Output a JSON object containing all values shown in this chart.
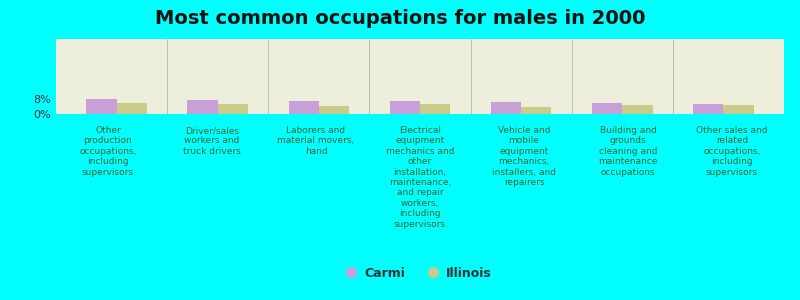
{
  "title": "Most common occupations for males in 2000",
  "background_color": "#00FFFF",
  "plot_background_color": "#EEEEDD",
  "bar_width": 0.3,
  "categories": [
    "Other\nproduction\noccupations,\nincluding\nsupervisors",
    "Driver/sales\nworkers and\ntruck drivers",
    "Laborers and\nmaterial movers,\nhand",
    "Electrical\nequipment\nmechanics and\nother\ninstallation,\nmaintenance,\nand repair\nworkers,\nincluding\nsupervisors",
    "Vehicle and\nmobile\nequipment\nmechanics,\ninstallers, and\nrepairers",
    "Building and\ngrounds\ncleaning and\nmaintenance\noccupations",
    "Other sales and\nrelated\noccupations,\nincluding\nsupervisors"
  ],
  "carmi_values": [
    7.9,
    7.6,
    6.8,
    6.7,
    6.3,
    5.7,
    5.6
  ],
  "illinois_values": [
    5.8,
    5.4,
    4.3,
    5.1,
    3.8,
    4.8,
    5.0
  ],
  "carmi_color": "#C8A0D8",
  "illinois_color": "#C8CC88",
  "ylim": [
    0,
    40
  ],
  "ytick_positions": [
    0,
    8
  ],
  "ytick_labels": [
    "0%",
    "8%"
  ],
  "legend_labels": [
    "Carmi",
    "Illinois"
  ],
  "title_fontsize": 14,
  "label_fontsize": 6.5,
  "tick_fontsize": 8,
  "label_color": "#336633"
}
